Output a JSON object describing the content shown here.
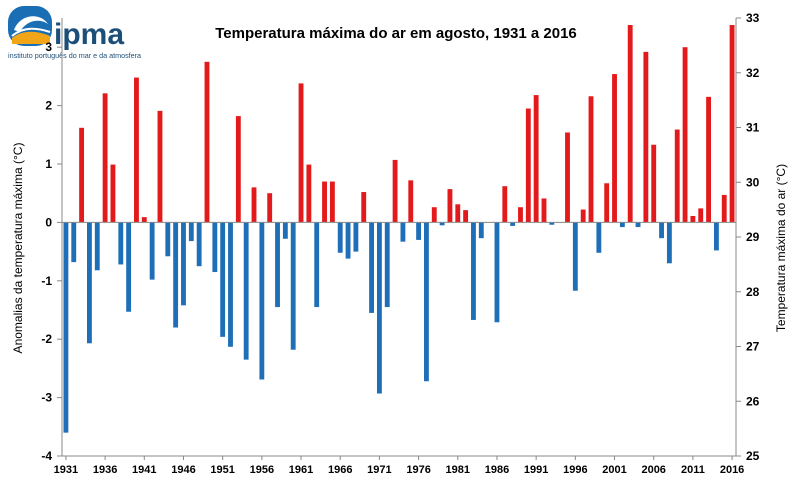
{
  "logo": {
    "name": "ipma",
    "tagline": "instituto português do mar e da atmosfera"
  },
  "colors": {
    "positive": "#e31a1c",
    "negative": "#1f6fb8",
    "brand_blue": "#1a6fb4",
    "brand_dark": "#1b4f7a",
    "brand_gold": "#f2a516"
  },
  "chart_data": {
    "type": "bar",
    "title": "Temperatura máxima do ar em agosto, 1931 a 2016",
    "ylabel_left": "Anomalias da temperatura máxima (°C)",
    "ylabel_right": "Temperatura máxima do ar (°C)",
    "ylim_left": [
      -4,
      3.5
    ],
    "ylim_right": [
      25,
      33
    ],
    "yticks_left": [
      "-4",
      "-3",
      "-2",
      "-1",
      "0",
      "1",
      "2",
      "3"
    ],
    "yticks_right": [
      "25",
      "26",
      "27",
      "28",
      "29",
      "30",
      "31",
      "32",
      "33"
    ],
    "xtick_labels": [
      "1931",
      "1936",
      "1941",
      "1946",
      "1951",
      "1956",
      "1961",
      "1966",
      "1971",
      "1976",
      "1981",
      "1986",
      "1991",
      "1996",
      "2001",
      "2006",
      "2011",
      "2016"
    ],
    "x_start": 1931,
    "x_end": 2016,
    "grid": false,
    "series": [
      {
        "values": [
          -3.6,
          -0.68,
          1.62,
          -2.07,
          -0.82,
          2.21,
          0.99,
          -0.72,
          -1.53,
          2.48,
          0.09,
          -0.98,
          1.91,
          -0.58,
          -1.8,
          -1.42,
          -0.32,
          -0.75,
          2.75,
          -0.85,
          -1.96,
          -2.13,
          1.82,
          -2.35,
          0.6,
          -2.69,
          0.5,
          -1.45,
          -0.28,
          -2.18,
          2.38,
          0.99,
          -1.45,
          0.7,
          0.7,
          -0.52,
          -0.62,
          -0.5,
          0.52,
          -1.55,
          -2.93,
          -1.45,
          1.07,
          -0.33,
          0.72,
          -0.3,
          -2.72,
          0.26,
          -0.05,
          0.57,
          0.31,
          0.21,
          -1.67,
          -0.27,
          0.0,
          -1.71,
          0.62,
          -0.06,
          0.26,
          1.95,
          2.18,
          0.41,
          -0.04,
          0.0,
          1.54,
          -1.17,
          0.22,
          2.16,
          -0.52,
          0.67,
          2.54,
          -0.08,
          3.38,
          -0.08,
          2.92,
          1.33,
          -0.27,
          -0.7,
          1.59,
          3.0,
          0.11,
          0.24,
          2.15,
          -0.48,
          0.47,
          3.38
        ]
      }
    ]
  }
}
